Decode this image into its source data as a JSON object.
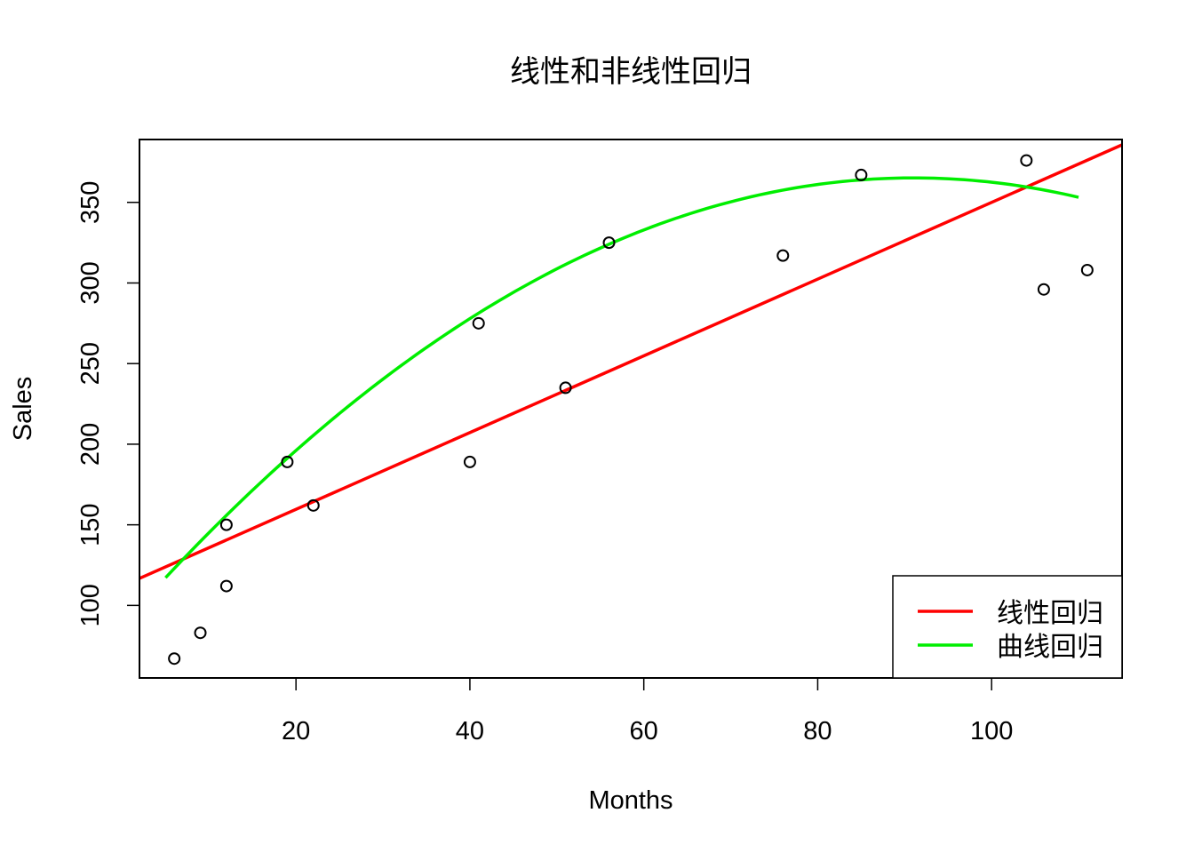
{
  "chart_data": {
    "type": "scatter",
    "title": "线性和非线性回归",
    "xlabel": "Months",
    "ylabel": "Sales",
    "xlim": [
      2,
      115
    ],
    "ylim": [
      55,
      389
    ],
    "x_ticks": [
      20,
      40,
      60,
      80,
      100
    ],
    "y_ticks": [
      100,
      150,
      200,
      250,
      300,
      350
    ],
    "points": {
      "x": [
        6,
        9,
        12,
        12,
        19,
        22,
        40,
        41,
        51,
        56,
        76,
        85,
        104,
        106,
        111
      ],
      "y": [
        67,
        83,
        112,
        150,
        189,
        162,
        189,
        275,
        235,
        325,
        317,
        367,
        376,
        296,
        308
      ]
    },
    "series": [
      {
        "name": "线性回归",
        "type": "linear",
        "color": "#ff0000",
        "intercept": 112,
        "slope": 2.38,
        "x_range": [
          2,
          115
        ]
      },
      {
        "name": "曲线回归",
        "type": "quadratic",
        "color": "#00ee00",
        "coefficients": [
          87.5,
          6.1,
          -0.0335
        ],
        "x_range": [
          5,
          110
        ]
      }
    ],
    "legend": {
      "position": "bottom-right"
    },
    "grid": false
  }
}
